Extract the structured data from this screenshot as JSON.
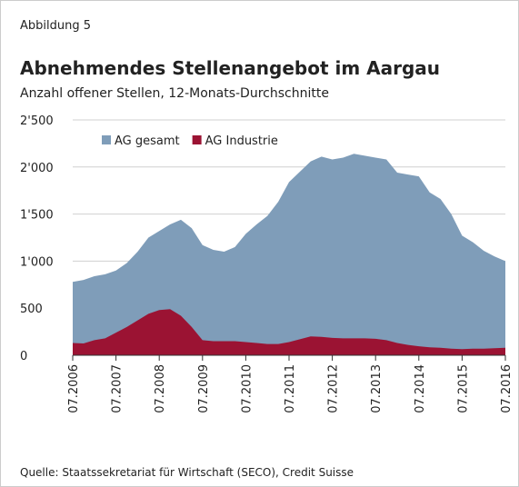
{
  "header": "Abbildung 5",
  "footer": "Quelle: Staatssekretariat für Wirtschaft (SECO), Credit Suisse",
  "chart_data": {
    "type": "area",
    "title": "Abnehmendes Stellenangebot im Aargau",
    "subtitle": "Anzahl offener Stellen, 12-Monats-Durchschnitte",
    "x": [
      2006.5,
      2006.75,
      2007,
      2007.25,
      2007.5,
      2007.75,
      2008,
      2008.25,
      2008.5,
      2008.75,
      2009,
      2009.25,
      2009.5,
      2009.75,
      2010,
      2010.25,
      2010.5,
      2010.75,
      2011,
      2011.25,
      2011.5,
      2011.75,
      2012,
      2012.25,
      2012.5,
      2012.75,
      2013,
      2013.25,
      2013.5,
      2013.75,
      2014,
      2014.25,
      2014.5,
      2014.75,
      2015,
      2015.25,
      2015.5,
      2015.75,
      2016,
      2016.25,
      2016.5
    ],
    "series": [
      {
        "name": "AG gesamt",
        "color": "#7f9db9",
        "values": [
          780,
          800,
          840,
          860,
          900,
          980,
          1100,
          1250,
          1320,
          1390,
          1440,
          1350,
          1170,
          1120,
          1100,
          1150,
          1290,
          1390,
          1480,
          1630,
          1840,
          1950,
          2060,
          2110,
          2080,
          2100,
          2140,
          2120,
          2100,
          2080,
          1940,
          1920,
          1900,
          1730,
          1660,
          1500,
          1270,
          1200,
          1110,
          1050,
          1000
        ]
      },
      {
        "name": "AG Industrie",
        "color": "#9b1333",
        "values": [
          130,
          125,
          160,
          180,
          240,
          300,
          370,
          440,
          480,
          490,
          420,
          300,
          160,
          150,
          150,
          150,
          140,
          130,
          120,
          120,
          140,
          170,
          200,
          195,
          185,
          180,
          180,
          180,
          175,
          160,
          130,
          110,
          95,
          85,
          80,
          70,
          65,
          70,
          70,
          75,
          80
        ]
      }
    ],
    "xlim": [
      2006.5,
      2016.5
    ],
    "xticks": [
      {
        "value": 2006.5,
        "label": "07.2006"
      },
      {
        "value": 2007.5,
        "label": "07.2007"
      },
      {
        "value": 2008.5,
        "label": "07.2008"
      },
      {
        "value": 2009.5,
        "label": "07.2009"
      },
      {
        "value": 2010.5,
        "label": "07.2010"
      },
      {
        "value": 2011.5,
        "label": "07.2011"
      },
      {
        "value": 2012.5,
        "label": "07.2012"
      },
      {
        "value": 2013.5,
        "label": "07.2013"
      },
      {
        "value": 2014.5,
        "label": "07.2014"
      },
      {
        "value": 2015.5,
        "label": "07.2015"
      },
      {
        "value": 2016.5,
        "label": "07.2016"
      }
    ],
    "ylim": [
      0,
      2500
    ],
    "yticks": [
      0,
      500,
      {
        "value": 1000,
        "label": "1'000"
      },
      {
        "value": 1500,
        "label": "1'500"
      },
      {
        "value": 2000,
        "label": "2'000"
      },
      {
        "value": 2500,
        "label": "2'500"
      }
    ],
    "grid": true,
    "legend": "top-left"
  }
}
